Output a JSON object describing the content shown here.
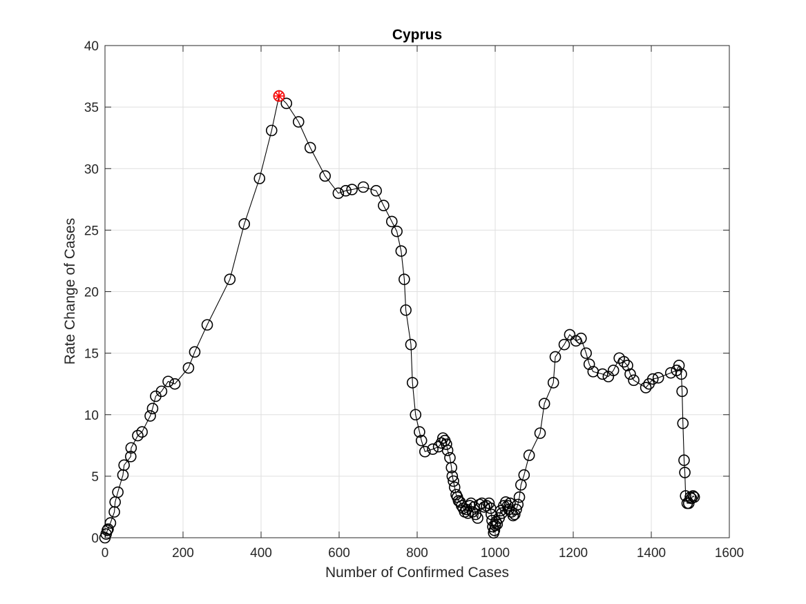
{
  "chart_data": {
    "type": "line",
    "title": "Cyprus",
    "xlabel": "Number of Confirmed Cases",
    "ylabel": "Rate Change of Cases",
    "xlim": [
      0,
      1600
    ],
    "ylim": [
      0,
      40
    ],
    "xticks": [
      0,
      200,
      400,
      600,
      800,
      1000,
      1200,
      1400,
      1600
    ],
    "yticks": [
      0,
      5,
      10,
      15,
      20,
      25,
      30,
      35,
      40
    ],
    "grid": true,
    "marker": "open-circle",
    "line_color": "#000000",
    "marker_color": "#000000",
    "highlight_color": "#ff0000",
    "highlight_point": {
      "x": 446,
      "y": 35.9
    },
    "series": [
      {
        "x": [
          0,
          3,
          6,
          8,
          14,
          24,
          26,
          33,
          46,
          49,
          66,
          67,
          84,
          95,
          116,
          122,
          130,
          145,
          162,
          179,
          214,
          230,
          262,
          320,
          357,
          396,
          427,
          446,
          465,
          496,
          526,
          564,
          598,
          617,
          633,
          662,
          695,
          714,
          735,
          748,
          759,
          767,
          771,
          784,
          788,
          796,
          806,
          811,
          820,
          840,
          855,
          862,
          866,
          871,
          875,
          878,
          884,
          888,
          890,
          893,
          896,
          900,
          903,
          906,
          910,
          914,
          918,
          922,
          926,
          930,
          935,
          938,
          942,
          946,
          950,
          955,
          960,
          966,
          972,
          978,
          984,
          988,
          990,
          992,
          994,
          996,
          998,
          1000,
          1002,
          1005,
          1010,
          1014,
          1017,
          1022,
          1027,
          1032,
          1035,
          1038,
          1042,
          1046,
          1050,
          1054,
          1058,
          1062,
          1066,
          1074,
          1087,
          1115,
          1126,
          1149,
          1154,
          1177,
          1191,
          1207,
          1220,
          1233,
          1241,
          1251,
          1275,
          1290,
          1303,
          1318,
          1330,
          1339,
          1346,
          1355,
          1386,
          1394,
          1404,
          1418,
          1450,
          1465,
          1471,
          1477,
          1479,
          1481,
          1484,
          1486,
          1488,
          1492,
          1496,
          1500,
          1503,
          1507,
          1510
        ],
        "y": [
          0,
          0.3,
          0.6,
          0.7,
          1.2,
          2.1,
          2.9,
          3.7,
          5.1,
          5.9,
          6.6,
          7.3,
          8.3,
          8.6,
          9.9,
          10.5,
          11.5,
          11.9,
          12.7,
          12.5,
          13.8,
          15.1,
          17.3,
          21.0,
          25.5,
          29.2,
          33.1,
          35.9,
          35.3,
          33.8,
          31.7,
          29.4,
          28.0,
          28.2,
          28.3,
          28.5,
          28.2,
          27.0,
          25.7,
          24.9,
          23.3,
          21.0,
          18.5,
          15.7,
          12.6,
          10.0,
          8.6,
          7.9,
          7.0,
          7.2,
          7.4,
          7.7,
          8.1,
          7.9,
          7.6,
          7.1,
          6.5,
          5.7,
          5.0,
          4.6,
          4.1,
          3.5,
          3.3,
          3.0,
          2.9,
          2.6,
          2.4,
          2.1,
          2.3,
          2.0,
          2.6,
          2.8,
          2.1,
          2.5,
          1.9,
          1.6,
          2.7,
          2.8,
          2.5,
          2.6,
          2.8,
          2.4,
          1.9,
          1.4,
          0.9,
          0.4,
          0.6,
          1.0,
          1.3,
          1.1,
          1.6,
          2.2,
          2.0,
          2.6,
          2.9,
          2.6,
          2.3,
          2.8,
          2.1,
          1.8,
          1.9,
          2.3,
          2.7,
          3.3,
          4.3,
          5.1,
          6.7,
          8.5,
          10.9,
          12.6,
          14.7,
          15.7,
          16.5,
          16.0,
          16.2,
          15.0,
          14.1,
          13.5,
          13.3,
          13.1,
          13.6,
          14.6,
          14.3,
          14.0,
          13.3,
          12.8,
          12.2,
          12.5,
          12.9,
          13.0,
          13.4,
          13.6,
          14.0,
          13.3,
          11.9,
          9.3,
          6.3,
          5.3,
          3.4,
          2.8,
          2.8,
          3.3,
          3.2,
          3.4,
          3.3
        ]
      }
    ]
  }
}
